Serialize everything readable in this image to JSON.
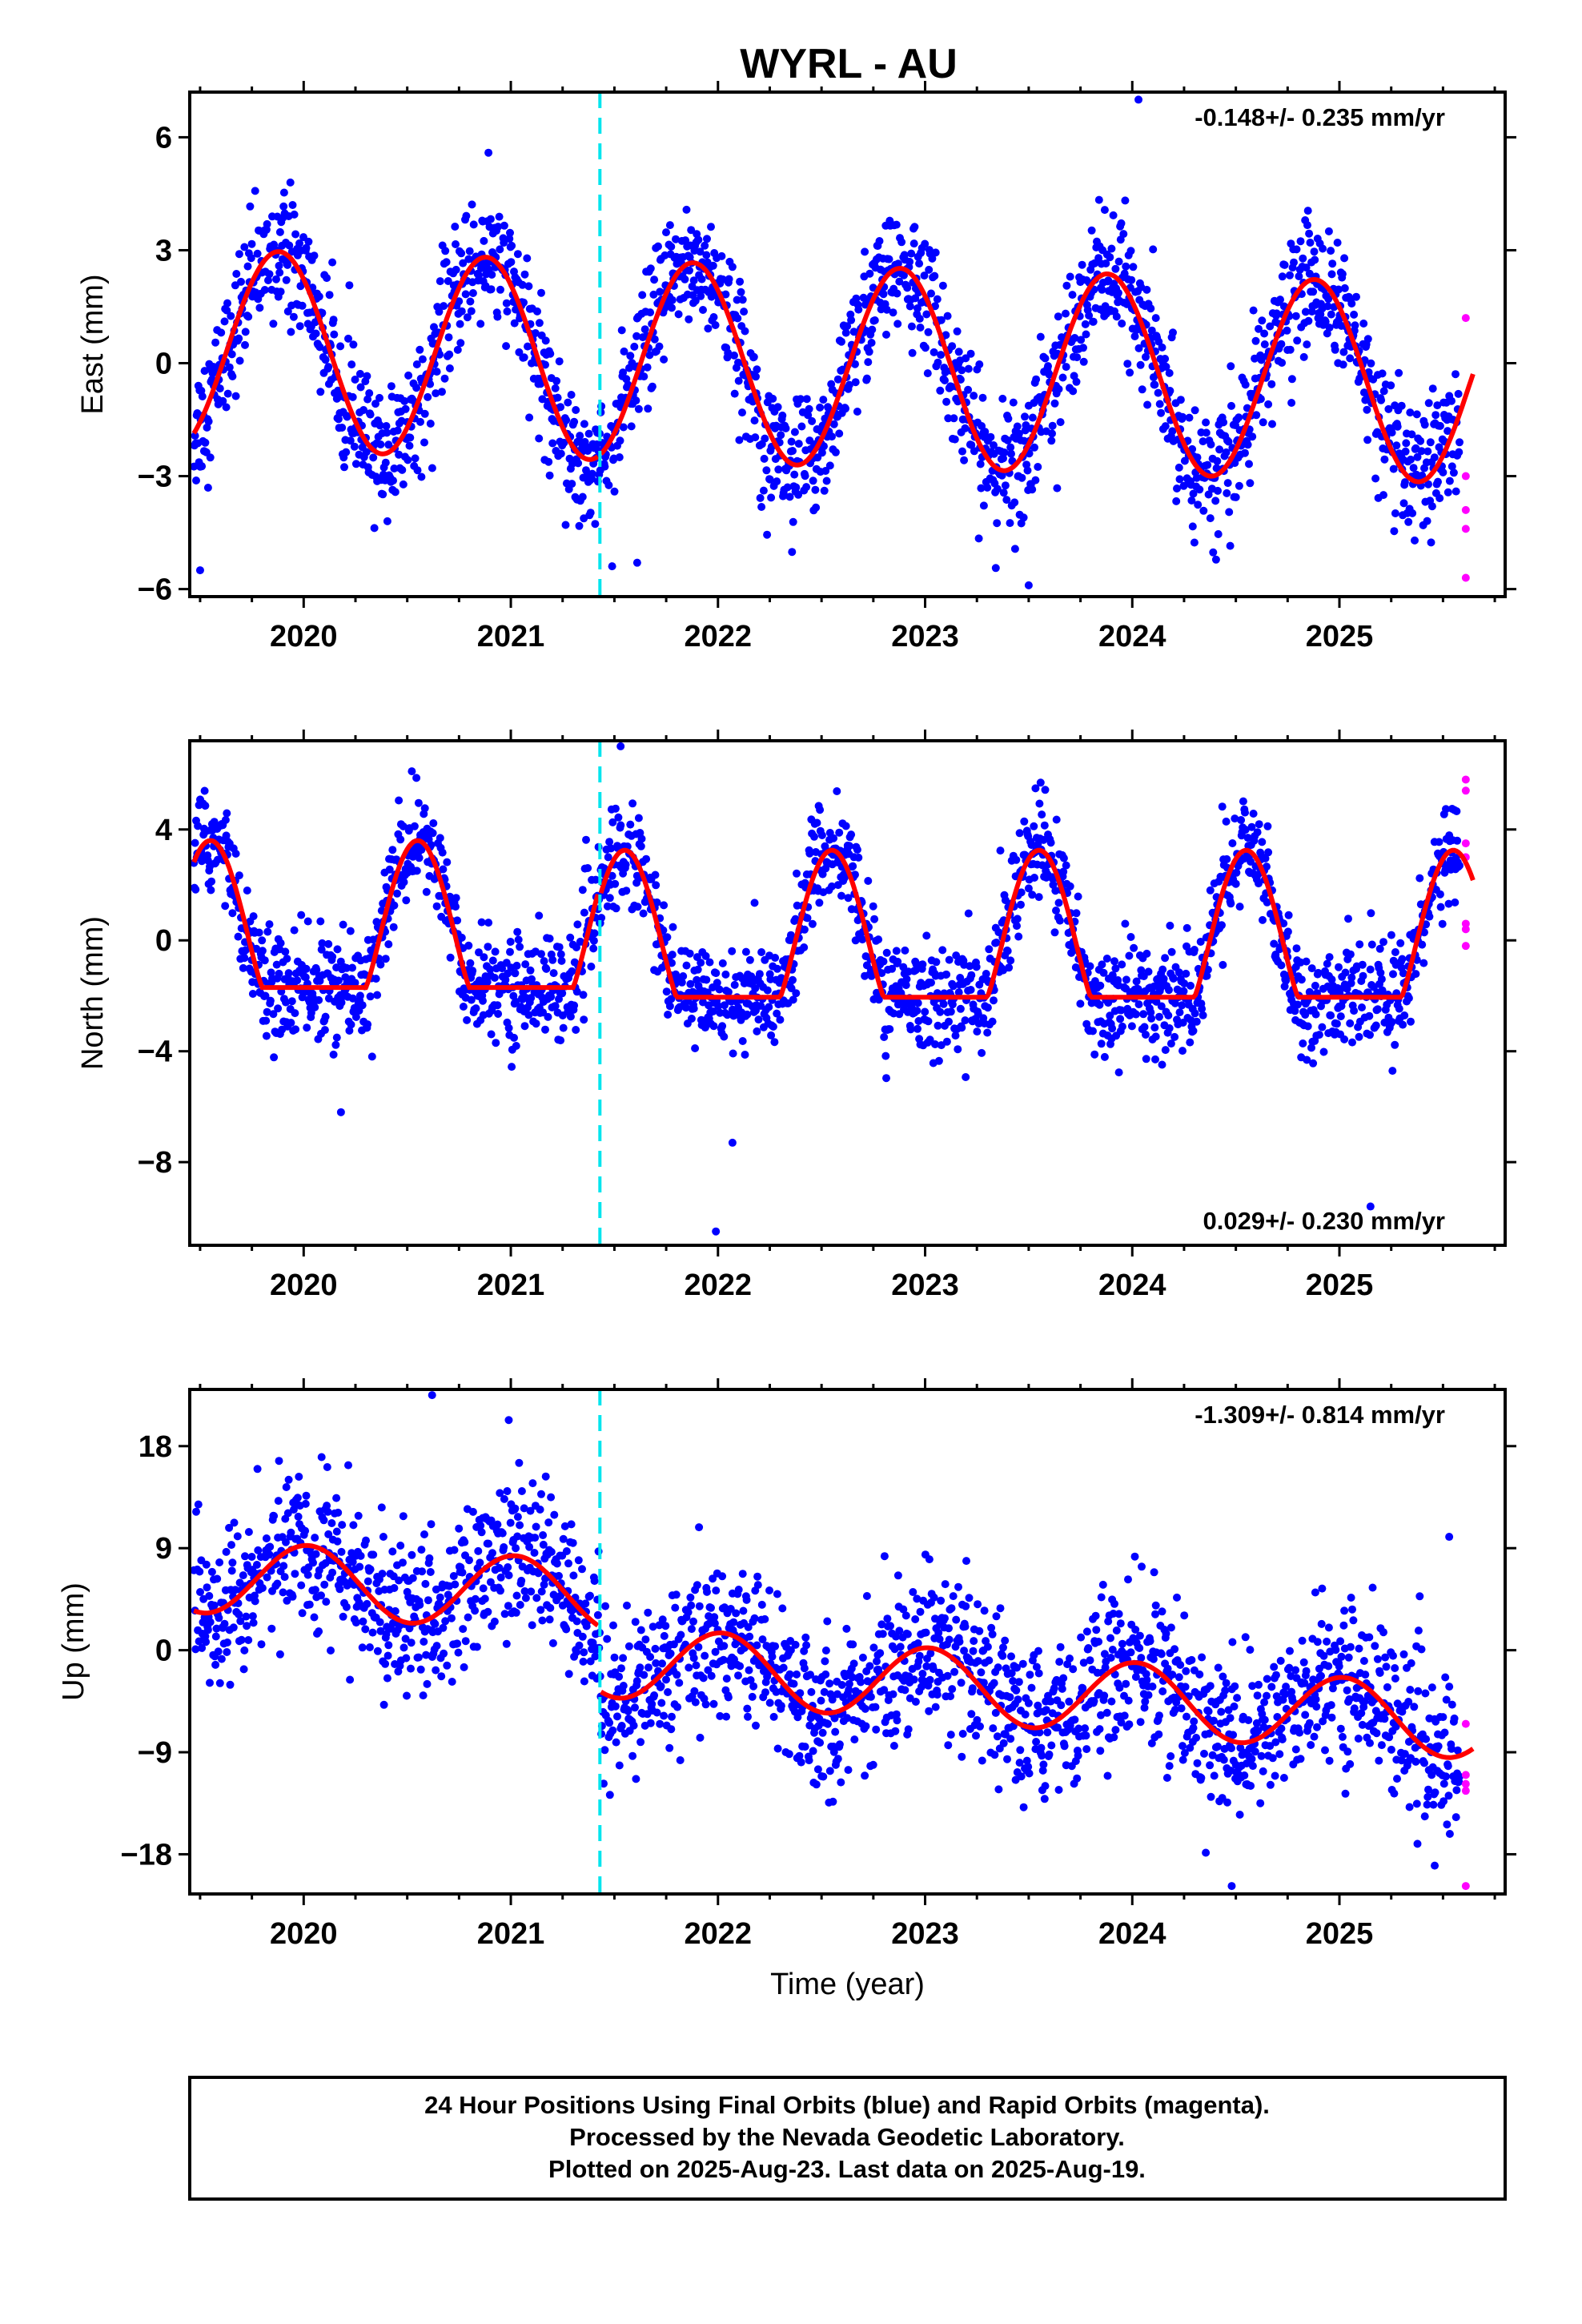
{
  "title": "WYRL - AU",
  "footer": {
    "lines": [
      "24 Hour Positions Using Final Orbits (blue) and Rapid Orbits (magenta).",
      "Processed by the Nevada Geodetic Laboratory.",
      "Plotted on 2025-Aug-23. Last data on 2025-Aug-19."
    ]
  },
  "colors": {
    "final": "#0000ff",
    "rapid": "#ff00ff",
    "model": "#ff0000",
    "break": "#00e5ee",
    "frame": "#000000"
  },
  "chart_data": [
    {
      "type": "scatter",
      "component": "East",
      "ylabel": "East (mm)",
      "xlabel": "",
      "xlim": [
        2019.45,
        2025.8
      ],
      "ylim": [
        -6.2,
        7.2
      ],
      "xticks": [
        2020,
        2021,
        2022,
        2023,
        2024,
        2025
      ],
      "yticks": [
        6,
        3,
        0,
        -3,
        -6
      ],
      "ytick_labels": [
        "6",
        "3",
        "0",
        "−3",
        "−6"
      ],
      "rate": "-0.148+/- 0.235 mm/yr",
      "rate_position": "top-right",
      "break_epoch": 2021.43,
      "model": {
        "offset": 0,
        "trend_mm_per_yr": -0.148,
        "amplitude": 2.65,
        "phase_peak": 2019.88,
        "step_at_break": 1.3,
        "noise_sd": 0.85
      },
      "final_range": [
        2019.47,
        2025.58
      ],
      "rapid_points": [
        [
          2025.61,
          1.2
        ],
        [
          2025.61,
          -3.0
        ],
        [
          2025.61,
          -3.9
        ],
        [
          2025.61,
          -4.4
        ],
        [
          2025.61,
          -5.7
        ]
      ],
      "outliers": [
        [
          2024.03,
          7.0
        ],
        [
          2023.5,
          -5.9
        ],
        [
          2019.5,
          -5.5
        ],
        [
          2021.61,
          -5.3
        ]
      ]
    },
    {
      "type": "scatter",
      "component": "North",
      "ylabel": "North (mm)",
      "xlabel": "",
      "xlim": [
        2019.45,
        2025.8
      ],
      "ylim": [
        -11.0,
        7.2
      ],
      "xticks": [
        2020,
        2021,
        2022,
        2023,
        2024,
        2025
      ],
      "yticks": [
        4,
        0,
        -4,
        -8
      ],
      "ytick_labels": [
        "4",
        "0",
        "−4",
        "−8"
      ],
      "rate": "0.029+/- 0.230 mm/yr",
      "rate_position": "bottom-right",
      "break_epoch": 2021.43,
      "model": {
        "trough": -1.7,
        "peak": 3.6,
        "peak_epoch": 2019.55,
        "noise_sd": 0.95
      },
      "final_range": [
        2019.47,
        2025.58
      ],
      "rapid_points": [
        [
          2025.61,
          5.8
        ],
        [
          2025.61,
          5.4
        ],
        [
          2025.61,
          3.5
        ],
        [
          2025.61,
          3.0
        ],
        [
          2025.61,
          0.6
        ],
        [
          2025.61,
          0.4
        ],
        [
          2025.61,
          -0.2
        ]
      ],
      "outliers": [
        [
          2021.53,
          7.0
        ],
        [
          2021.99,
          -10.5
        ],
        [
          2025.15,
          -9.6
        ],
        [
          2022.07,
          -7.3
        ],
        [
          2020.18,
          -6.2
        ]
      ]
    },
    {
      "type": "scatter",
      "component": "Up",
      "ylabel": "Up (mm)",
      "xlabel": "Time (year)",
      "xlim": [
        2019.45,
        2025.8
      ],
      "ylim": [
        -21.5,
        23.0
      ],
      "xticks": [
        2020,
        2021,
        2022,
        2023,
        2024,
        2025
      ],
      "yticks": [
        18,
        9,
        0,
        -9,
        -18
      ],
      "ytick_labels": [
        "18",
        "9",
        "0",
        "−9",
        "−18"
      ],
      "rate": "-1.309+/- 0.814 mm/yr",
      "rate_position": "top-right",
      "break_epoch": 2021.43,
      "model": {
        "trend_mm_per_yr": -1.309,
        "amplitude": 3.2,
        "phase_peak": 2020.02,
        "pre_break_level": 6.5,
        "post_break_level": -1.0,
        "noise_sd": 3.4
      },
      "final_range": [
        2019.47,
        2025.58
      ],
      "rapid_points": [
        [
          2025.61,
          -6.5
        ],
        [
          2025.61,
          -11.0
        ],
        [
          2025.61,
          -11.8
        ],
        [
          2025.61,
          -12.4
        ],
        [
          2025.61,
          -20.8
        ]
      ],
      "outliers": [
        [
          2020.62,
          22.5
        ],
        [
          2020.99,
          20.3
        ],
        [
          2024.48,
          -20.8
        ],
        [
          2025.46,
          -19.0
        ],
        [
          2025.53,
          10.0
        ]
      ]
    }
  ]
}
